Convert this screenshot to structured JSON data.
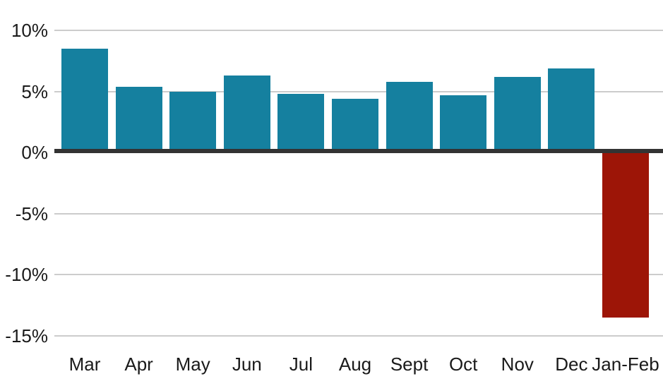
{
  "chart_data": {
    "type": "bar",
    "categories": [
      "Mar",
      "Apr",
      "May",
      "Jun",
      "Jul",
      "Aug",
      "Sept",
      "Oct",
      "Nov",
      "Dec",
      "Jan-Feb"
    ],
    "values": [
      8.5,
      5.4,
      5.0,
      6.3,
      4.8,
      4.4,
      5.8,
      4.7,
      6.2,
      6.9,
      -13.5
    ],
    "title": "",
    "xlabel": "",
    "ylabel": "",
    "ylim": [
      -16.5,
      11
    ],
    "yticks": [
      10,
      5,
      0,
      -5,
      -10,
      -15
    ],
    "ytick_labels": [
      "10%",
      "5%",
      "0%",
      "-5%",
      "-10%",
      "-15%"
    ],
    "grid": true,
    "legend": false,
    "colors": {
      "positive_bar": "#15809f",
      "negative_bar": "#9d1507",
      "zero_axis": "#333333",
      "gridline": "#cccccc",
      "tick_text": "#1a1a1a",
      "background": "#ffffff"
    }
  }
}
